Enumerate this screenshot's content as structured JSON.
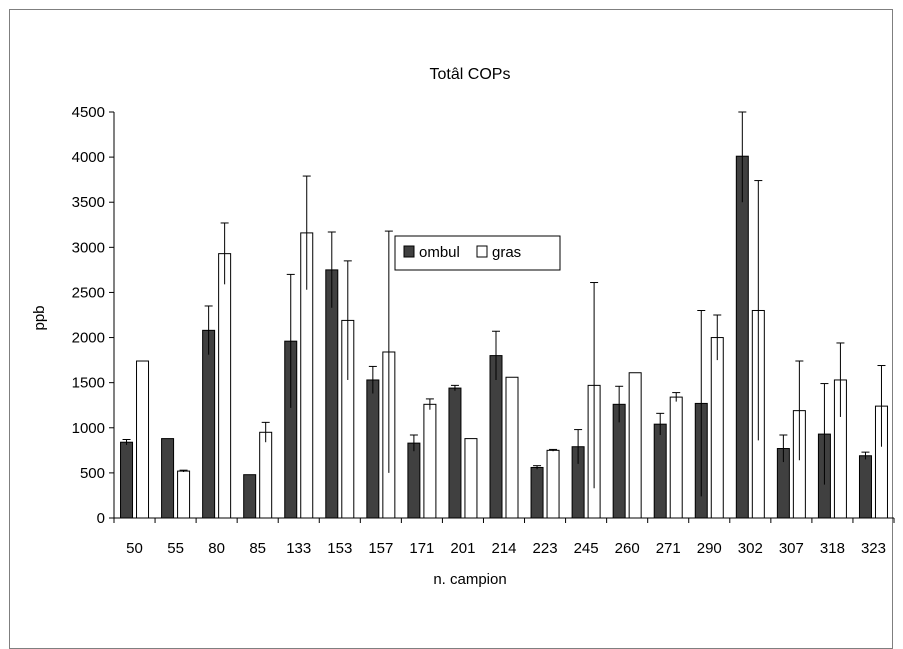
{
  "chart_data": {
    "type": "bar",
    "title": "Totâl COPs",
    "xlabel": "n. campion",
    "ylabel": "ppb",
    "ylim": [
      0,
      4500
    ],
    "y_ticks": [
      "0",
      "500",
      "1000",
      "1500",
      "2000",
      "2500",
      "3000",
      "3500",
      "4000",
      "4500"
    ],
    "grid": false,
    "legend_position": "center",
    "categories": [
      "50",
      "55",
      "80",
      "85",
      "133",
      "153",
      "157",
      "171",
      "201",
      "214",
      "223",
      "245",
      "260",
      "271",
      "290",
      "302",
      "307",
      "318",
      "323"
    ],
    "series": [
      {
        "name": "ombul",
        "color": "#404040",
        "values": [
          840,
          880,
          2080,
          480,
          1960,
          2750,
          1530,
          830,
          1440,
          1800,
          560,
          790,
          1260,
          1040,
          1270,
          4010,
          770,
          930,
          690
        ],
        "error": [
          30,
          0,
          270,
          0,
          740,
          420,
          150,
          90,
          30,
          270,
          20,
          190,
          200,
          120,
          1030,
          510,
          150,
          560,
          40
        ]
      },
      {
        "name": "gras",
        "color": "#ffffff",
        "values": [
          1740,
          520,
          2930,
          950,
          3160,
          2190,
          1840,
          1260,
          880,
          1560,
          750,
          1470,
          1610,
          1340,
          2000,
          2300,
          1190,
          1530,
          1240
        ],
        "error": [
          0,
          10,
          340,
          110,
          630,
          660,
          1340,
          60,
          0,
          0,
          10,
          1140,
          0,
          50,
          250,
          1440,
          550,
          410,
          450
        ]
      }
    ]
  }
}
